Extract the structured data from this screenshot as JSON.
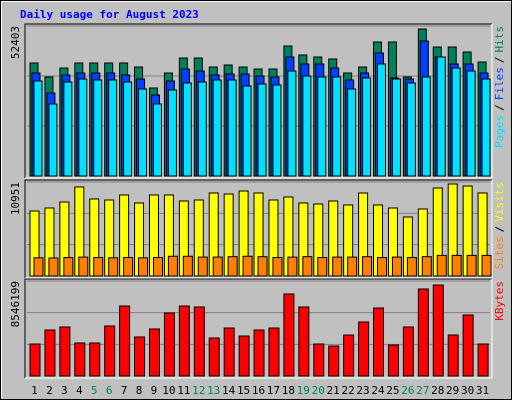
{
  "chart_data": [
    {
      "type": "bar",
      "title": "Daily usage for August 2023",
      "ylim": [
        0,
        52403
      ],
      "yticks": [
        52403
      ],
      "legend_separator": "/",
      "series": [
        {
          "name": "Pages",
          "color": "#00e0ff",
          "values": [
            33188,
            25153,
            32839,
            33887,
            33538,
            33538,
            32839,
            30394,
            25153,
            30044,
            32490,
            32839,
            33538,
            33538,
            31442,
            32140,
            31791,
            36682,
            34935,
            34586,
            34586,
            30394,
            34236,
            39127,
            33887,
            32490,
            34586,
            41573,
            37730,
            36682,
            33887
          ]
        },
        {
          "name": "Files",
          "color": "#0040ff",
          "values": [
            35983,
            28996,
            35284,
            35983,
            35983,
            35983,
            35284,
            33887,
            28297,
            33188,
            37380,
            36682,
            35284,
            35634,
            35634,
            34935,
            34586,
            41573,
            39127,
            39127,
            37730,
            33538,
            35983,
            42970,
            34236,
            33887,
            47162,
            41573,
            39127,
            39127,
            35983
          ]
        },
        {
          "name": "Hits",
          "color": "#00805c",
          "values": [
            39476,
            34586,
            37730,
            39476,
            39476,
            39476,
            39476,
            38079,
            30743,
            35983,
            41223,
            41223,
            38079,
            38778,
            38079,
            37380,
            37380,
            45416,
            42271,
            41573,
            40874,
            35983,
            38079,
            46813,
            46813,
            34586,
            51354,
            45066,
            45066,
            43319,
            39826
          ]
        }
      ]
    },
    {
      "type": "bar",
      "ylim": [
        0,
        10951
      ],
      "yticks": [
        10951
      ],
      "legend_separator": "/",
      "series": [
        {
          "name": "Sites",
          "color": "#ff8000",
          "values": [
            2120,
            2100,
            2150,
            2200,
            2150,
            2120,
            2150,
            2120,
            2150,
            2300,
            2300,
            2200,
            2200,
            2250,
            2300,
            2250,
            2150,
            2200,
            2250,
            2150,
            2200,
            2200,
            2250,
            2150,
            2200,
            2150,
            2250,
            2400,
            2400,
            2400,
            2400
          ]
        },
        {
          "name": "Visits",
          "color": "#ffff00",
          "values": [
            7573,
            7922,
            8621,
            10369,
            8971,
            8854,
            9437,
            8505,
            9437,
            9437,
            8738,
            8854,
            9670,
            9553,
            9903,
            9670,
            8854,
            9204,
            8505,
            8388,
            8738,
            8272,
            9670,
            8272,
            7922,
            6874,
            7806,
            10252,
            10718,
            10485,
            9670
          ]
        }
      ]
    },
    {
      "type": "bar",
      "ylim": [
        0,
        8546199
      ],
      "yticks": [
        8546199
      ],
      "categories": [
        "1",
        "2",
        "3",
        "4",
        "5",
        "6",
        "7",
        "8",
        "9",
        "10",
        "11",
        "12",
        "13",
        "14",
        "15",
        "16",
        "17",
        "18",
        "19",
        "20",
        "21",
        "22",
        "23",
        "24",
        "25",
        "26",
        "27",
        "28",
        "29",
        "30",
        "31"
      ],
      "category_colors": [
        "#000000",
        "#000000",
        "#000000",
        "#000000",
        "#00805c",
        "#00805c",
        "#000000",
        "#000000",
        "#000000",
        "#000000",
        "#000000",
        "#00805c",
        "#00805c",
        "#000000",
        "#000000",
        "#000000",
        "#000000",
        "#000000",
        "#00805c",
        "#00805c",
        "#000000",
        "#000000",
        "#000000",
        "#000000",
        "#000000",
        "#00805c",
        "#00805c",
        "#000000",
        "#000000",
        "#000000",
        "#000000"
      ],
      "series": [
        {
          "name": "KBytes",
          "color": "#ff0000",
          "values": [
            2878720,
            4138160,
            4408040,
            2968680,
            2968680,
            4498000,
            6297200,
            3508440,
            4228120,
            5667480,
            6297200,
            6207240,
            3418480,
            4318080,
            3598400,
            4138160,
            4318080,
            7376720,
            6207240,
            2878720,
            2698800,
            3688360,
            4857840,
            6117280,
            2788760,
            4408040,
            7826520,
            8186360,
            3688360,
            5487560,
            2878720
          ]
        }
      ]
    }
  ]
}
